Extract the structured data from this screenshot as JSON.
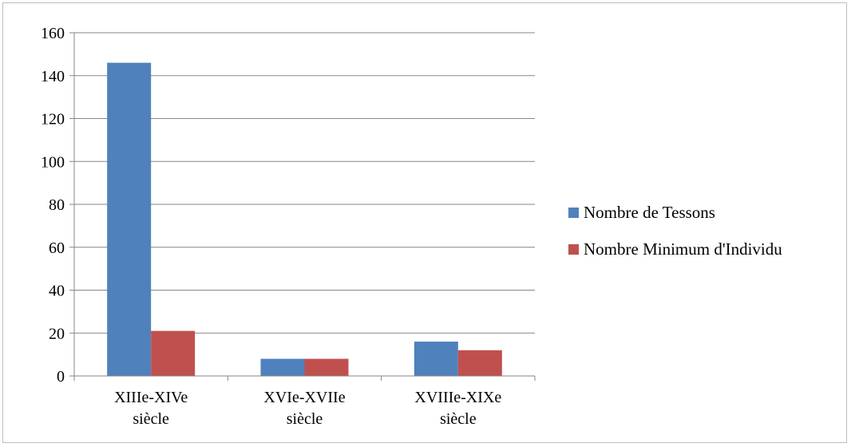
{
  "chart_data": {
    "type": "bar",
    "title": "",
    "xlabel": "",
    "ylabel": "",
    "categories": [
      [
        "XIIIe-XIVe",
        "siècle"
      ],
      [
        "XVIe-XVIIe",
        "siècle"
      ],
      [
        "XVIIIe-XIXe",
        "siècle"
      ]
    ],
    "series": [
      {
        "name": "Nombre de Tessons",
        "color": "#4f81bd",
        "values": [
          146,
          8,
          16
        ]
      },
      {
        "name": "Nombre Minimum d'Individu",
        "color": "#c0504d",
        "values": [
          21,
          8,
          12
        ]
      }
    ],
    "ylim": [
      0,
      160
    ],
    "yticks": [
      0,
      20,
      40,
      60,
      80,
      100,
      120,
      140,
      160
    ],
    "grid": true,
    "legend_position": "right"
  }
}
